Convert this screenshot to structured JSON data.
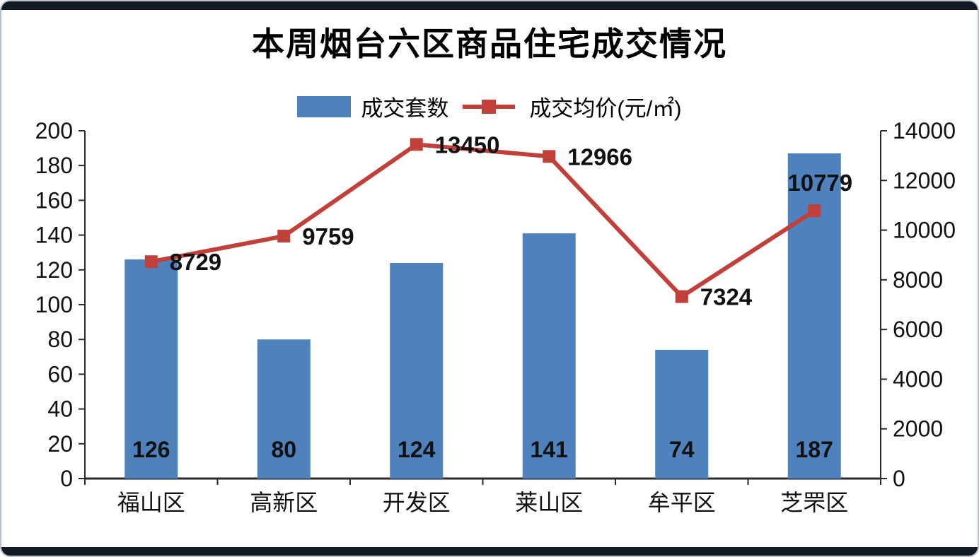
{
  "page": {
    "background": "#ffffff",
    "border_color": "#b6c3cf",
    "edge_bar_color": "#141a24"
  },
  "chart_data": {
    "type": "bar",
    "subtype": "combo-bar-line",
    "title": "本周烟台六区商品住宅成交情况",
    "categories": [
      "福山区",
      "高新区",
      "开发区",
      "莱山区",
      "牟平区",
      "芝罘区"
    ],
    "series": [
      {
        "name": "成交套数",
        "type": "bar",
        "axis": "left",
        "color": "#4f81bd",
        "values": [
          126,
          80,
          124,
          141,
          74,
          187
        ]
      },
      {
        "name": "成交均价(元/㎡)",
        "type": "line",
        "axis": "right",
        "color": "#c2403a",
        "marker": "square",
        "values": [
          8729,
          9759,
          13450,
          12966,
          7324,
          10779
        ],
        "label_positions": [
          "right",
          "right",
          "right",
          "right",
          "right",
          "above"
        ]
      }
    ],
    "left_axis": {
      "min": 0,
      "max": 200,
      "step": 20
    },
    "right_axis": {
      "min": 0,
      "max": 14000,
      "step": 2000
    },
    "grid": false,
    "legend_position": "top",
    "axis_color": "#2b2b2b"
  }
}
